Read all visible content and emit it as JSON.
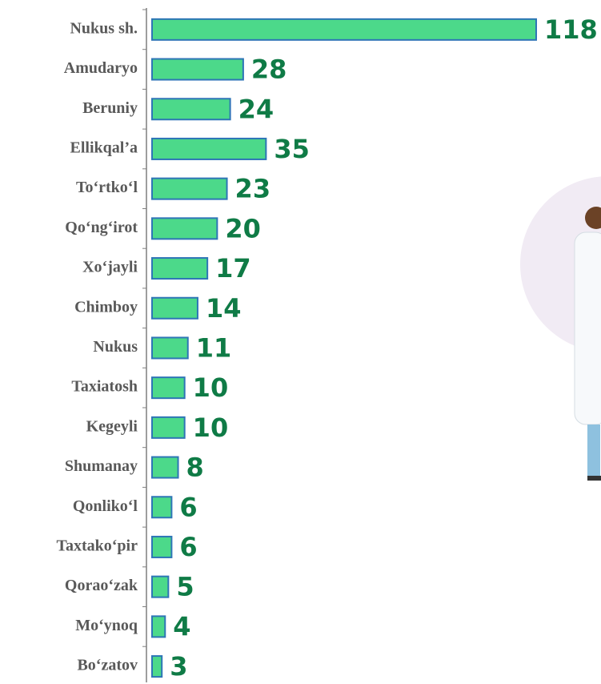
{
  "chart_data": {
    "type": "bar",
    "orientation": "horizontal",
    "categories": [
      "Nukus sh.",
      "Amudaryo",
      "Beruniy",
      "Ellikqal’a",
      "To‘rtko‘l",
      "Qo‘ng‘irot",
      "Xo‘jayli",
      "Chimboy",
      "Nukus",
      "Taxiatosh",
      "Kegeyli",
      "Shumanay",
      "Qonliko‘l",
      "Taxtako‘pir",
      "Qorao‘zak",
      "Mo‘ynoq",
      "Bo‘zatov"
    ],
    "values": [
      118,
      28,
      24,
      35,
      23,
      20,
      17,
      14,
      11,
      10,
      10,
      8,
      6,
      6,
      5,
      4,
      3
    ],
    "color": "#4cd98a",
    "edge_color": "#2e75b6",
    "label_color": "#0f7b46"
  }
}
